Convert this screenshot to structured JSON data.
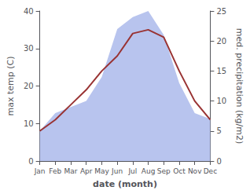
{
  "chart_data": {
    "type": "line",
    "xlabel": "date (month)",
    "ylabel": "max temp (C)",
    "y2label": "med. precipitation (kg/m2)",
    "categories": [
      "Jan",
      "Feb",
      "Mar",
      "Apr",
      "May",
      "Jun",
      "Jul",
      "Aug",
      "Sep",
      "Oct",
      "Nov",
      "Dec"
    ],
    "series": [
      {
        "type": "area",
        "color": "#b8c4ee",
        "axis": "y2",
        "values": [
          5,
          8,
          9,
          10,
          14,
          22,
          24,
          25,
          21,
          13,
          8,
          7
        ]
      },
      {
        "type": "line",
        "color": "#993333",
        "values": [
          8,
          11,
          15,
          19,
          24,
          28,
          34,
          35,
          33,
          24,
          16,
          11
        ]
      }
    ],
    "ylim": [
      0,
      40
    ],
    "yticks": [
      0,
      10,
      20,
      30,
      40
    ],
    "y2lim": [
      0,
      25
    ],
    "y2ticks": [
      0,
      5,
      10,
      15,
      20,
      25
    ],
    "grid": false
  }
}
